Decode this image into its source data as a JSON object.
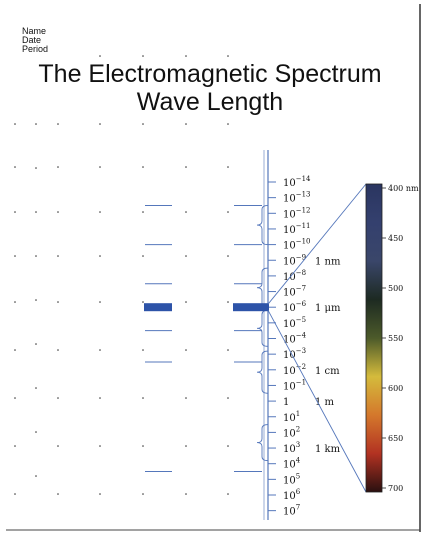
{
  "header": {
    "name_label": "Name",
    "date_label": "Date",
    "period_label": "Period"
  },
  "title": {
    "line1": "The Electromagnetic Spectrum",
    "line2": "Wave Length"
  },
  "scale": {
    "ticks": [
      {
        "base": "10",
        "exp": "−14"
      },
      {
        "base": "10",
        "exp": "−13"
      },
      {
        "base": "10",
        "exp": "−12"
      },
      {
        "base": "10",
        "exp": "−11"
      },
      {
        "base": "10",
        "exp": "−10"
      },
      {
        "base": "10",
        "exp": "−9"
      },
      {
        "base": "10",
        "exp": "−8"
      },
      {
        "base": "10",
        "exp": "−7"
      },
      {
        "base": "10",
        "exp": "−6"
      },
      {
        "base": "10",
        "exp": "−5"
      },
      {
        "base": "10",
        "exp": "−4"
      },
      {
        "base": "10",
        "exp": "−3"
      },
      {
        "base": "10",
        "exp": "−2"
      },
      {
        "base": "10",
        "exp": "−1"
      },
      {
        "base": "1",
        "exp": ""
      },
      {
        "base": "10",
        "exp": "1"
      },
      {
        "base": "10",
        "exp": "2"
      },
      {
        "base": "10",
        "exp": "3"
      },
      {
        "base": "10",
        "exp": "4"
      },
      {
        "base": "10",
        "exp": "5"
      },
      {
        "base": "10",
        "exp": "6"
      },
      {
        "base": "10",
        "exp": "7"
      }
    ],
    "unit_labels": [
      {
        "text": "1 nm",
        "tick": 5
      },
      {
        "text": "1 μm",
        "tick": 8
      },
      {
        "text": "1 cm",
        "tick": 12
      },
      {
        "text": "1 m",
        "tick": 14
      },
      {
        "text": "1 km",
        "tick": 17
      }
    ],
    "highlight_tick": 8
  },
  "visible_spectrum": {
    "labels": [
      "400 nm",
      "450",
      "500",
      "550",
      "600",
      "650",
      "700"
    ],
    "colors": [
      "#2a3560",
      "#34406e",
      "#3a466a",
      "#1d2a22",
      "#4c5a2a",
      "#d4bb3c",
      "#d4782c",
      "#b23222",
      "#2a1010"
    ]
  },
  "colors": {
    "blue": "#2d53a8",
    "line": "#5577bb"
  }
}
